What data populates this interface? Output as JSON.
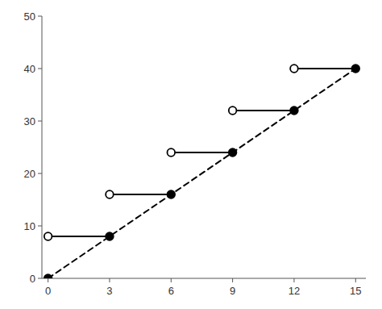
{
  "chart_data": {
    "type": "line",
    "color": "#000000",
    "xlim": [
      -0.3,
      15.5
    ],
    "ylim": [
      0,
      50
    ],
    "xticks": [
      0,
      3,
      6,
      9,
      12,
      15
    ],
    "yticks": [
      0,
      10,
      20,
      30,
      40,
      50
    ],
    "series": [
      {
        "type": "line",
        "line_style": "dashed",
        "x": [
          0,
          15
        ],
        "values": [
          0,
          40
        ]
      },
      {
        "type": "line",
        "line_style": "solid",
        "x": [
          0,
          3
        ],
        "values": [
          8,
          8
        ]
      },
      {
        "type": "line",
        "line_style": "solid",
        "x": [
          3,
          6
        ],
        "values": [
          16,
          16
        ]
      },
      {
        "type": "line",
        "line_style": "solid",
        "x": [
          6,
          9
        ],
        "values": [
          24,
          24
        ]
      },
      {
        "type": "line",
        "line_style": "solid",
        "x": [
          9,
          12
        ],
        "values": [
          32,
          32
        ]
      },
      {
        "type": "line",
        "line_style": "solid",
        "x": [
          12,
          15
        ],
        "values": [
          40,
          40
        ]
      },
      {
        "type": "scatter",
        "marker": "open-circle",
        "x": [
          0,
          3,
          6,
          9,
          12
        ],
        "values": [
          8,
          16,
          24,
          32,
          40
        ]
      },
      {
        "type": "scatter",
        "marker": "circle",
        "x": [
          0,
          3,
          6,
          9,
          12,
          15
        ],
        "values": [
          0,
          8,
          16,
          24,
          32,
          40
        ]
      }
    ]
  }
}
